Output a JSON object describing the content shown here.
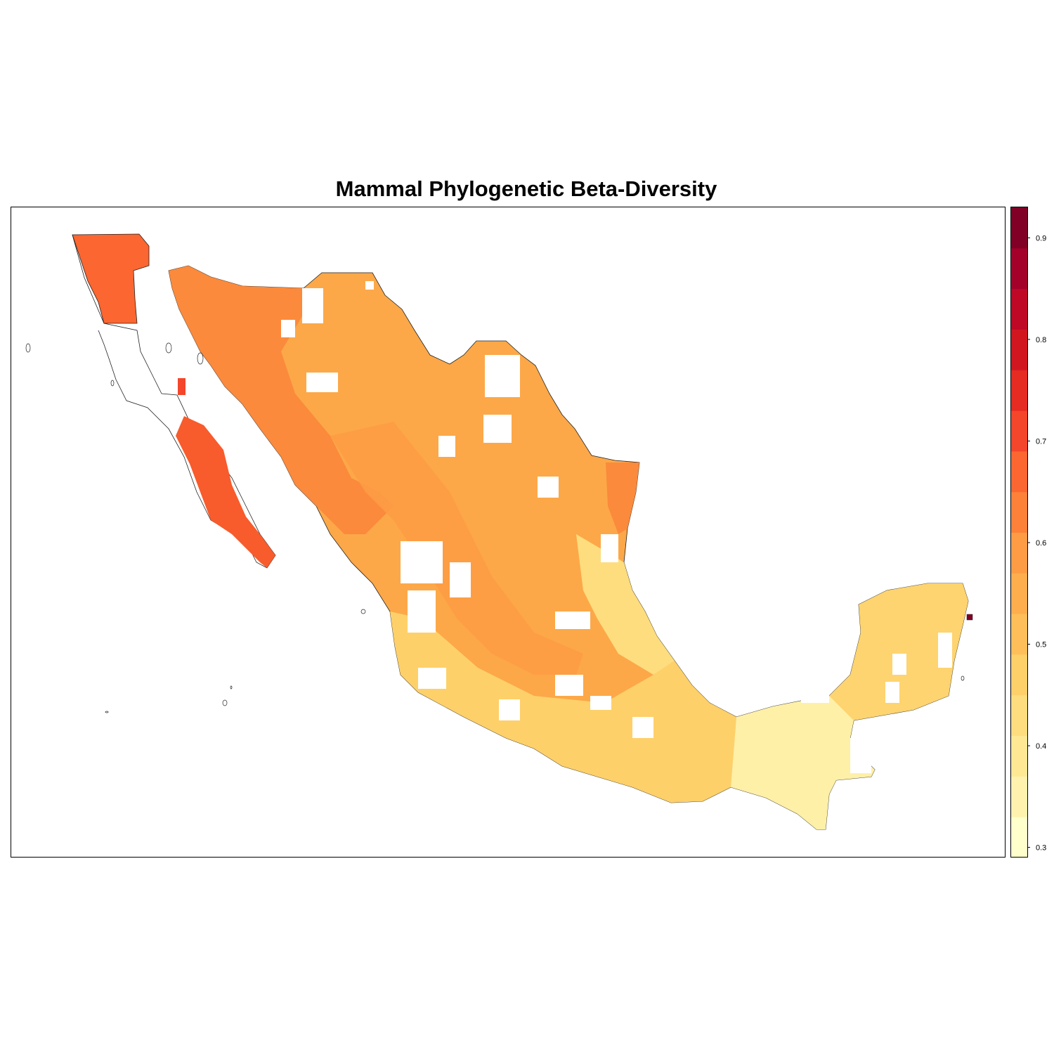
{
  "title": "Mammal Phylogenetic Beta-Diversity",
  "legend": {
    "ticks": [
      "0.3",
      "0.4",
      "0.5",
      "0.6",
      "0.7",
      "0.8",
      "0.9"
    ],
    "range": [
      0.29,
      0.93
    ],
    "breaks": [
      0.29,
      0.33,
      0.37,
      0.41,
      0.45,
      0.49,
      0.53,
      0.57,
      0.61,
      0.65,
      0.69,
      0.73,
      0.77,
      0.81,
      0.85,
      0.89,
      0.93
    ],
    "colors": [
      "#ffffcc",
      "#fff2ae",
      "#ffe894",
      "#fedd7e",
      "#fed06a",
      "#febf5a",
      "#feae4d",
      "#fd9c45",
      "#fd8138",
      "#fc6630",
      "#f4462a",
      "#e52b22",
      "#d2161f",
      "#bf0826",
      "#a3002a",
      "#800026"
    ]
  },
  "regions": [
    {
      "name": "baja-norte",
      "value": 0.66,
      "color": "#fc6630"
    },
    {
      "name": "baja-sur",
      "value": 0.68,
      "color": "#f85b2c"
    },
    {
      "name": "sonora-chihuahua",
      "value": 0.6,
      "color": "#fb8a3c"
    },
    {
      "name": "central-plateau",
      "value": 0.55,
      "color": "#fca848"
    },
    {
      "name": "pacific-coast-south",
      "value": 0.45,
      "color": "#fed06a"
    },
    {
      "name": "gulf-coast",
      "value": 0.43,
      "color": "#fedd7e"
    },
    {
      "name": "yucatan",
      "value": 0.48,
      "color": "#fed470"
    },
    {
      "name": "tabasco",
      "value": 0.38,
      "color": "#fff0a8"
    },
    {
      "name": "cozumel",
      "value": 0.92,
      "color": "#800026"
    }
  ]
}
